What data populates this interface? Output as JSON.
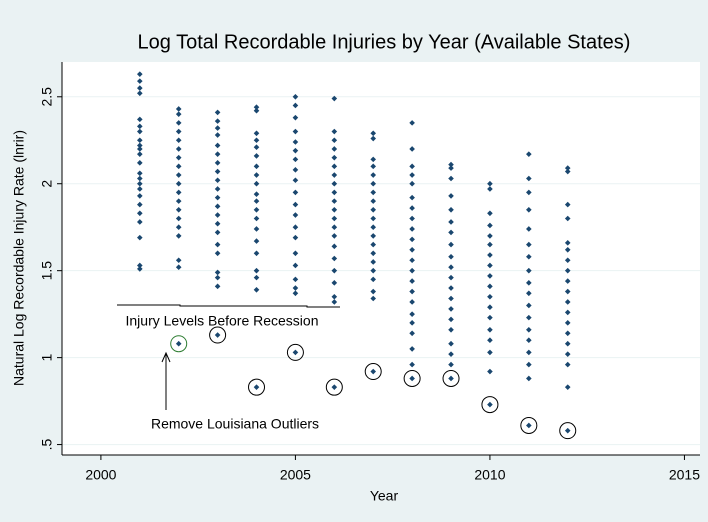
{
  "chart_data": {
    "type": "scatter",
    "title": "Log Total Recordable Injuries by Year (Available States)",
    "x_label": "Year",
    "y_label": "Natural Log Recordable Injury Rate (lnrir)",
    "color": "#1a476f",
    "grid": true,
    "xlim": [
      1999,
      2015.4
    ],
    "ylim": [
      0.44,
      2.7
    ],
    "xticks": [
      2000,
      2005,
      2010,
      2015
    ],
    "yticks": [
      {
        "value": 0.5,
        "label": ".5"
      },
      1,
      1.5,
      2,
      2.5
    ],
    "groups": [
      {
        "x": 2001,
        "values": [
          2.63,
          2.59,
          2.55,
          2.52,
          2.37,
          2.33,
          2.3,
          2.25,
          2.22,
          2.2,
          2.17,
          2.12,
          2.06,
          2.03,
          2.0,
          1.97,
          1.93,
          1.88,
          1.83,
          1.78,
          1.69,
          1.53,
          1.51
        ]
      },
      {
        "x": 2002,
        "values": [
          2.43,
          2.4,
          2.35,
          2.3,
          2.25,
          2.2,
          2.15,
          2.1,
          2.05,
          2.0,
          1.95,
          1.9,
          1.85,
          1.8,
          1.75,
          1.7,
          1.56,
          1.52
        ]
      },
      {
        "x": 2003,
        "values": [
          2.41,
          2.36,
          2.32,
          2.28,
          2.22,
          2.17,
          2.12,
          2.07,
          2.02,
          1.97,
          1.92,
          1.87,
          1.82,
          1.77,
          1.72,
          1.65,
          1.6,
          1.49,
          1.46,
          1.41
        ]
      },
      {
        "x": 2004,
        "values": [
          2.44,
          2.42,
          2.29,
          2.25,
          2.21,
          2.16,
          2.1,
          2.05,
          2.0,
          1.94,
          1.9,
          1.85,
          1.8,
          1.74,
          1.67,
          1.6,
          1.5,
          1.46,
          1.39
        ]
      },
      {
        "x": 2005,
        "values": [
          2.5,
          2.45,
          2.38,
          2.3,
          2.24,
          2.19,
          2.14,
          2.08,
          2.02,
          1.95,
          1.88,
          1.82,
          1.75,
          1.69,
          1.6,
          1.53,
          1.45,
          1.4,
          1.37
        ]
      },
      {
        "x": 2006,
        "values": [
          2.49,
          2.3,
          2.25,
          2.2,
          2.15,
          2.1,
          2.05,
          2.0,
          1.95,
          1.9,
          1.85,
          1.8,
          1.75,
          1.7,
          1.64,
          1.57,
          1.5,
          1.43,
          1.35,
          1.32
        ]
      },
      {
        "x": 2007,
        "values": [
          2.29,
          2.26,
          2.14,
          2.1,
          2.05,
          2.0,
          1.95,
          1.9,
          1.85,
          1.8,
          1.75,
          1.7,
          1.65,
          1.6,
          1.55,
          1.5,
          1.45,
          1.38,
          1.34
        ]
      },
      {
        "x": 2008,
        "values": [
          2.35,
          2.2,
          2.1,
          2.05,
          2.0,
          1.92,
          1.86,
          1.8,
          1.74,
          1.68,
          1.62,
          1.56,
          1.5,
          1.44,
          1.38,
          1.32,
          1.25,
          1.2,
          1.14,
          1.05,
          0.96
        ]
      },
      {
        "x": 2009,
        "values": [
          2.11,
          2.09,
          2.03,
          1.93,
          1.85,
          1.78,
          1.72,
          1.65,
          1.58,
          1.52,
          1.46,
          1.4,
          1.34,
          1.28,
          1.22,
          1.16,
          1.08,
          1.02,
          0.96
        ]
      },
      {
        "x": 2010,
        "values": [
          2.0,
          1.97,
          1.83,
          1.76,
          1.7,
          1.65,
          1.59,
          1.53,
          1.47,
          1.41,
          1.35,
          1.29,
          1.23,
          1.16,
          1.1,
          1.03,
          0.92
        ]
      },
      {
        "x": 2011,
        "values": [
          2.17,
          2.03,
          1.95,
          1.85,
          1.74,
          1.65,
          1.58,
          1.5,
          1.43,
          1.37,
          1.3,
          1.23,
          1.16,
          1.1,
          1.03,
          0.96,
          0.88
        ]
      },
      {
        "x": 2012,
        "values": [
          2.09,
          2.07,
          1.88,
          1.8,
          1.66,
          1.62,
          1.56,
          1.5,
          1.44,
          1.38,
          1.32,
          1.26,
          1.2,
          1.14,
          1.08,
          1.02,
          0.96,
          0.83
        ]
      }
    ],
    "outliers": {
      "x": [
        2002,
        2003,
        2004,
        2005,
        2006,
        2007,
        2008,
        2009,
        2010,
        2011,
        2012
      ],
      "values": [
        1.08,
        1.13,
        0.83,
        1.03,
        0.83,
        0.92,
        0.88,
        0.88,
        0.73,
        0.61,
        0.58
      ]
    },
    "annotations": [
      "Injury Levels Before Recession",
      "Remove Louisiana Outliers"
    ]
  }
}
